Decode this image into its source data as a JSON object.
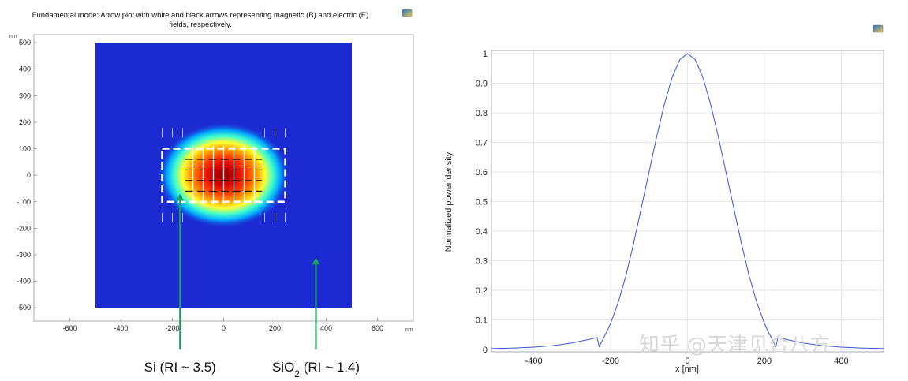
{
  "chart_data": [
    {
      "type": "heatmap",
      "title": "Fundamental mode: Arrow plot with white and black arrows representing magnetic (B) and electric (E) fields, respectively.",
      "title_lines": [
        "Fundamental mode: Arrow plot with white and black arrows representing magnetic (B) and electric (E)",
        "fields, respectively."
      ],
      "x_unit": "nm",
      "y_unit": "nm",
      "xlim": [
        -740,
        740
      ],
      "ylim": [
        -550,
        530
      ],
      "x_ticks": [
        -600,
        -400,
        -200,
        0,
        200,
        400,
        600
      ],
      "y_ticks": [
        500,
        400,
        300,
        200,
        100,
        0,
        -100,
        -200,
        -300,
        -400,
        -500
      ],
      "domain": {
        "x": [
          -500,
          500
        ],
        "y": [
          -500,
          500
        ]
      },
      "core": {
        "x": [
          -240,
          240
        ],
        "y": [
          -100,
          100
        ]
      },
      "mode_center": [
        0,
        0
      ],
      "annotations": [
        {
          "prefix": "Si",
          "sub": "",
          "suffix": " (RI ~ 3.5)",
          "arrow_x": -170,
          "arrow_top_y": -70
        },
        {
          "prefix": "SiO",
          "sub": "2",
          "suffix": " (RI ~ 1.4)",
          "arrow_x": 360,
          "arrow_top_y": -310
        }
      ]
    },
    {
      "type": "line",
      "ylabel": "Normalized power density",
      "xlabel": "x [nm]",
      "xlim": [
        -510,
        510
      ],
      "ylim": [
        0,
        1
      ],
      "x_ticks": [
        -400,
        -200,
        0,
        200,
        400
      ],
      "y_ticks": [
        0,
        0.1,
        0.2,
        0.3,
        0.4,
        0.5,
        0.6,
        0.7,
        0.8,
        0.9,
        1
      ],
      "grid": true,
      "series": [
        {
          "color": "#3a56d4",
          "x": [
            -510,
            -450,
            -400,
            -350,
            -300,
            -260,
            -235,
            -230,
            -225,
            -220,
            -210,
            -200,
            -180,
            -160,
            -140,
            -120,
            -100,
            -80,
            -60,
            -40,
            -20,
            0,
            20,
            40,
            60,
            80,
            100,
            120,
            140,
            160,
            180,
            200,
            210,
            220,
            225,
            230,
            235,
            260,
            300,
            350,
            400,
            450,
            510
          ],
          "y": [
            0.003,
            0.005,
            0.008,
            0.013,
            0.022,
            0.033,
            0.04,
            0.01,
            0.022,
            0.035,
            0.06,
            0.088,
            0.16,
            0.25,
            0.36,
            0.48,
            0.6,
            0.72,
            0.83,
            0.92,
            0.98,
            1.0,
            0.98,
            0.92,
            0.83,
            0.72,
            0.6,
            0.48,
            0.36,
            0.25,
            0.16,
            0.088,
            0.06,
            0.035,
            0.022,
            0.01,
            0.04,
            0.033,
            0.022,
            0.013,
            0.008,
            0.005,
            0.003
          ]
        }
      ]
    }
  ],
  "watermark": "知乎 @天津见合八方",
  "icons": [
    "snapshot-icon-left",
    "snapshot-icon-right"
  ]
}
